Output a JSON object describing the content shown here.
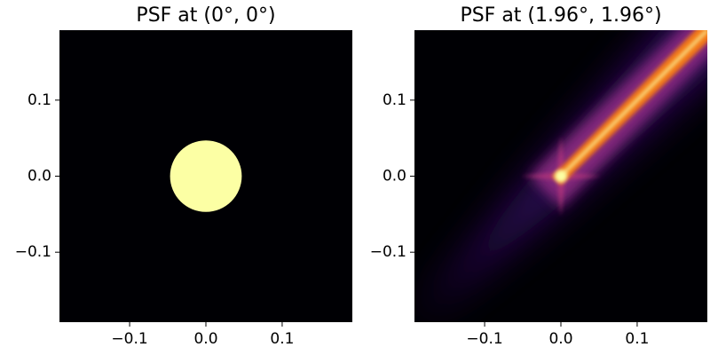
{
  "chart_data": [
    {
      "type": "image",
      "title": "PSF at (0°, 0°)",
      "colormap": "inferno",
      "background": "#000004",
      "color": "#fcffa4",
      "disk_radius": 0.047,
      "xlim": [
        -0.192,
        0.192
      ],
      "ylim": [
        -0.192,
        0.192
      ],
      "xticks": [
        {
          "value": -0.1,
          "label": "−0.1"
        },
        {
          "value": 0,
          "label": "0.0"
        },
        0.1
      ],
      "yticks": [
        {
          "value": -0.1,
          "label": "−0.1"
        },
        {
          "value": 0,
          "label": "0.0"
        },
        0.1
      ]
    },
    {
      "type": "image",
      "title": "PSF at (1.96°, 1.96°)",
      "colormap": "inferno",
      "background": "#000004",
      "color": "#fcffa4",
      "xlim": [
        -0.192,
        0.192
      ],
      "ylim": [
        -0.192,
        0.192
      ],
      "xticks": [
        {
          "value": -0.1,
          "label": "−0.1"
        },
        {
          "value": 0,
          "label": "0.0"
        },
        0.1
      ],
      "yticks": [
        {
          "value": -0.1,
          "label": "−0.1"
        },
        {
          "value": 0,
          "label": "0.0"
        },
        0.1
      ]
    }
  ]
}
